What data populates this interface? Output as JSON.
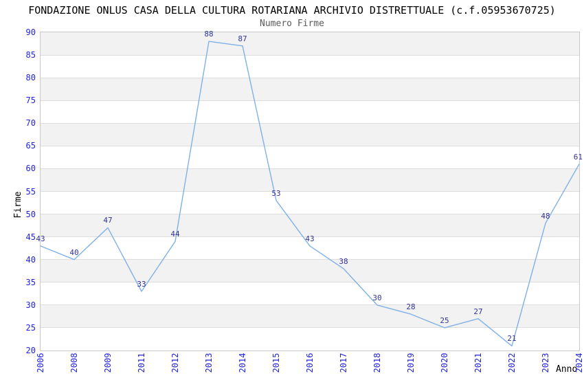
{
  "chart_data": {
    "type": "line",
    "title": "FONDAZIONE ONLUS CASA DELLA CULTURA ROTARIANA ARCHIVIO DISTRETTUALE (c.f.05953670725)",
    "subtitle": "Numero Firme",
    "xlabel": "Anno",
    "ylabel": "Firme",
    "categories": [
      "2006",
      "2008",
      "2009",
      "2011",
      "2012",
      "2013",
      "2014",
      "2015",
      "2016",
      "2017",
      "2018",
      "2019",
      "2020",
      "2021",
      "2022",
      "2023",
      "2024"
    ],
    "values": [
      43,
      40,
      47,
      33,
      44,
      88,
      87,
      53,
      43,
      38,
      30,
      28,
      25,
      27,
      21,
      48,
      61
    ],
    "ylim": [
      20,
      90
    ],
    "ytick_step": 5,
    "yticks": [
      20,
      25,
      30,
      35,
      40,
      45,
      50,
      55,
      60,
      65,
      70,
      75,
      80,
      85,
      90
    ],
    "grid": "horizontal-bands-alternating",
    "legend": "none",
    "data_labels": true,
    "colors": {
      "line": "#7eb1e8",
      "tick_label": "#2222dd",
      "data_label": "#333399",
      "band_gray": "#f2f2f2",
      "grid_line": "#dddddd",
      "plot_border": "#c9c9c9",
      "title": "#000000",
      "subtitle": "#5a5a5a",
      "axis_title": "#000000",
      "background": "#ffffff"
    }
  }
}
